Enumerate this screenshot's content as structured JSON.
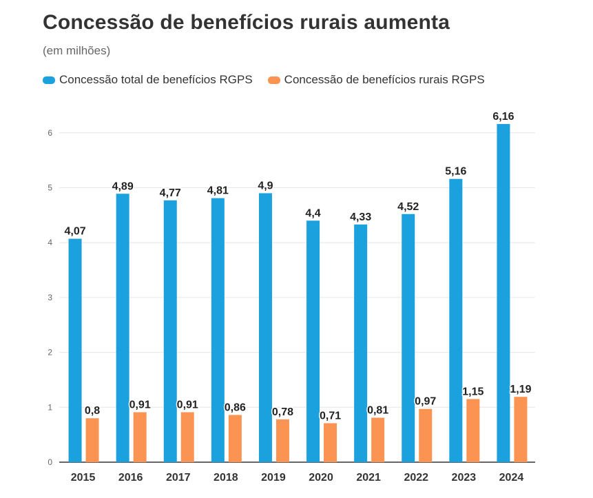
{
  "chart_data": {
    "type": "bar",
    "title": "Concessão de benefícios rurais aumenta",
    "subtitle": "(em milhões)",
    "categories": [
      "2015",
      "2016",
      "2017",
      "2018",
      "2019",
      "2020",
      "2021",
      "2022",
      "2023",
      "2024"
    ],
    "series": [
      {
        "name": "Concessão total de benefícios RGPS",
        "color": "#1ba1dd",
        "values": [
          4.07,
          4.89,
          4.77,
          4.81,
          4.9,
          4.4,
          4.33,
          4.52,
          5.16,
          6.16
        ],
        "labels": [
          "4,07",
          "4,89",
          "4,77",
          "4,81",
          "4,9",
          "4,4",
          "4,33",
          "4,52",
          "5,16",
          "6,16"
        ]
      },
      {
        "name": "Concessão de benefícios rurais RGPS",
        "color": "#fb9352",
        "values": [
          0.8,
          0.91,
          0.91,
          0.86,
          0.78,
          0.71,
          0.81,
          0.97,
          1.15,
          1.19
        ],
        "labels": [
          "0,8",
          "0,91",
          "0,91",
          "0,86",
          "0,78",
          "0,71",
          "0,81",
          "0,97",
          "1,15",
          "1,19"
        ]
      }
    ],
    "yticks": [
      "0",
      "1",
      "2",
      "3",
      "4",
      "5",
      "6"
    ],
    "ylim": [
      0,
      6.5
    ],
    "grid": true,
    "legend": "top-left"
  }
}
